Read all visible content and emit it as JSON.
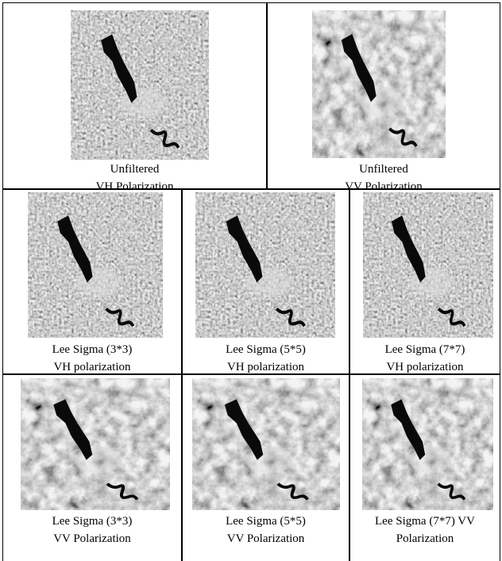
{
  "table": {
    "rows": [
      [
        {
          "lines": [
            "Unfiltered",
            "VH Polarization"
          ]
        },
        {
          "lines": [
            "Unfiltered",
            "VV Polarization"
          ]
        }
      ],
      [
        {
          "lines": [
            "Lee Sigma (3*3)",
            "VH polarization"
          ]
        },
        {
          "lines": [
            "Lee Sigma (5*5)",
            "VH polarization"
          ]
        },
        {
          "lines": [
            "Lee Sigma (7*7)",
            "VH polarization"
          ]
        }
      ],
      [
        {
          "lines": [
            "Lee Sigma (3*3)",
            "VV Polarization"
          ]
        },
        {
          "lines": [
            "Lee Sigma (5*5)",
            "VV Polarization"
          ]
        },
        {
          "lines": [
            "Lee Sigma (7*7) VV",
            "Polarization"
          ]
        }
      ]
    ]
  }
}
